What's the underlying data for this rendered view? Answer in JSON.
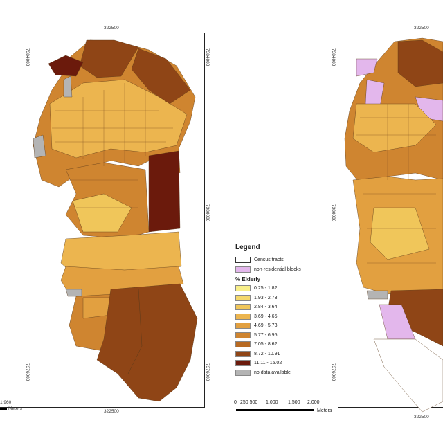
{
  "maps": {
    "left": {
      "coord_top": "322500",
      "coord_bottom": "322500",
      "coord_y_top": "7384000",
      "coord_y_mid": "7380000",
      "coord_y_bottom": "7376000",
      "scale_fragment": "1,960",
      "scale_units": "Meters"
    },
    "right": {
      "coord_top": "322500",
      "coord_bottom": "322500",
      "coord_y_top": "7384000",
      "coord_y_mid": "7380000",
      "coord_y_bottom": "7376000"
    }
  },
  "legend": {
    "title": "Legend",
    "census_tracts": "Census tracts",
    "non_residential": "non-residential blocks",
    "section_title": "% Elderly",
    "classes": [
      {
        "label": "0.25 - 1.82",
        "color": "#f8ef8a"
      },
      {
        "label": "1.93 - 2.73",
        "color": "#f4d86b"
      },
      {
        "label": "2.84 - 3.64",
        "color": "#f0c65a"
      },
      {
        "label": "3.69 - 4.65",
        "color": "#ecb54f"
      },
      {
        "label": "4.69 - 5.73",
        "color": "#e2a040"
      },
      {
        "label": "5.77 - 6.95",
        "color": "#cf8530"
      },
      {
        "label": "7.05 - 8.62",
        "color": "#b86a22"
      },
      {
        "label": "8.72 - 10.91",
        "color": "#8f4516"
      },
      {
        "label": "11.11 - 15.02",
        "color": "#6b1a0c"
      }
    ],
    "no_data": "no data available",
    "colors": {
      "census_tracts": "#ffffff",
      "non_residential": "#e3b7ec",
      "no_data": "#b4b4b4"
    }
  },
  "scale": {
    "ticks": [
      "0",
      "250 500",
      "1,000",
      "1,500",
      "2,000"
    ],
    "units": "Meters"
  }
}
